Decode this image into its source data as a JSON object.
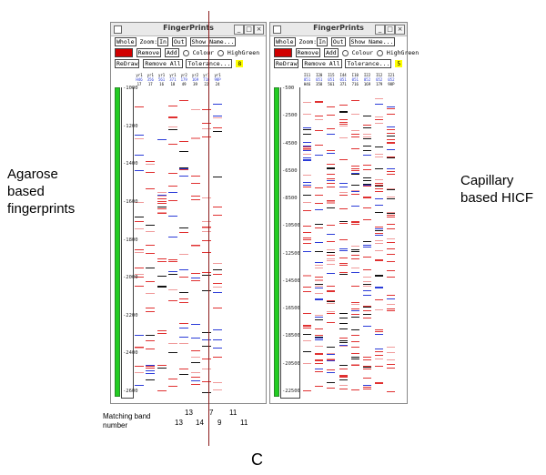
{
  "labels": {
    "left_caption": [
      "Agarose",
      "based",
      "fingerprints"
    ],
    "right_caption": [
      "Capillary",
      "based HICF"
    ],
    "matching_band_label": [
      "Matching band",
      "number"
    ],
    "panel_letter": "C"
  },
  "matching_numbers": {
    "top": [
      "13",
      "7",
      "11"
    ],
    "bottom": [
      "13",
      "14",
      "9",
      "11"
    ]
  },
  "windows": [
    {
      "title": "FingerPrints",
      "buttons": [
        "_",
        "□",
        "×"
      ],
      "row1": {
        "whole": "Whole",
        "zoom_label": "Zoom:",
        "zoom_in": "In",
        "zoom_out": "Out",
        "show_name": "Show Name..."
      },
      "row2": {
        "hide": "Hide",
        "remove": "Remove",
        "add": "Add",
        "opt1": "Colour",
        "opt2": "HighGreen"
      },
      "row3": {
        "redraw": "ReDraw",
        "remove_all": "Remove All",
        "tolerance": "Tolerance...",
        "tol_value": "8"
      },
      "lane_headers": {
        "row1": [
          "yr1",
          "yr1",
          "yr1",
          "yr1",
          "yr2",
          "yr2",
          "yr1",
          "yr1"
        ],
        "row2": [
          "H46",
          "356",
          "561",
          "371",
          "179",
          "169",
          "716",
          "98P"
        ],
        "row3": [
          "17",
          "17",
          "16",
          "18",
          "49",
          "39",
          "22",
          "24"
        ]
      },
      "ticks": [
        "-1000",
        "-1200",
        "-1400",
        "-1600",
        "-1800",
        "-2000",
        "-2200",
        "-2400",
        "-2600"
      ],
      "colors": {
        "red": "#e03030",
        "pink": "#f09a9a",
        "blue": "#2a3bd8",
        "dark": "#111111"
      }
    },
    {
      "title": "FingerPrints",
      "buttons": [
        "_",
        "□",
        "×"
      ],
      "row1": {
        "whole": "Whole",
        "zoom_label": "Zoom:",
        "zoom_in": "In",
        "zoom_out": "Out",
        "show_name": "Show Name..."
      },
      "row2": {
        "hide": "Hide",
        "remove": "Remove",
        "add": "Add",
        "opt1": "Colour",
        "opt2": "HighGreen"
      },
      "row3": {
        "redraw": "ReDraw",
        "remove_all": "Remove All",
        "tolerance": "Tolerance...",
        "tol_value": "5"
      },
      "lane_headers": {
        "row1": [
          "I11",
          "I20",
          "I15",
          "I44",
          "I10",
          "I22",
          "I12",
          "I21"
        ],
        "row2": [
          "051",
          "051",
          "051",
          "051",
          "051",
          "052",
          "052",
          "052"
        ],
        "row3": [
          "H46",
          "358",
          "561",
          "371",
          "716",
          "169",
          "179",
          "98P"
        ]
      },
      "ticks": [
        "-500",
        "-2500",
        "-4500",
        "-6500",
        "-8500",
        "-10500",
        "-12500",
        "-14500",
        "-16500",
        "-18500",
        "-20500",
        "-22500"
      ],
      "colors": {
        "red": "#e03030",
        "pink": "#f09a9a",
        "blue": "#2a3bd8",
        "dark": "#111111"
      }
    }
  ]
}
